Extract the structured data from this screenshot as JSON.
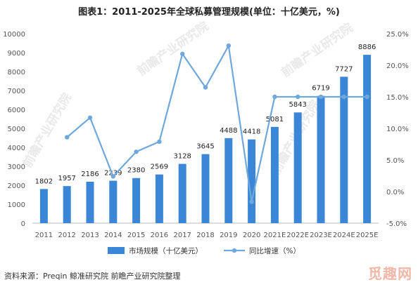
{
  "title": "图表1：2011-2025年全球私募管理规模(单位：十亿美元，%)",
  "source": "资料来源：Preqin 鲸准研究院 前瞻产业研究院整理",
  "watermark": "前瞻产业研究院",
  "corner_mark": "觅趣网",
  "colors": {
    "bar": "#3b86d6",
    "line": "#6fa8dc",
    "axis": "#bbbbbb"
  },
  "chart_data": {
    "type": "bar",
    "categories": [
      "2011",
      "2012",
      "2013",
      "2014",
      "2015",
      "2016",
      "2017",
      "2018",
      "2019",
      "2020",
      "2021E",
      "2022E",
      "2023E",
      "2024E",
      "2025E"
    ],
    "series": [
      {
        "name": "市场规模（十亿美元）",
        "type": "bar",
        "axis": "left",
        "values": [
          1802,
          1957,
          2186,
          2239,
          2380,
          2569,
          3128,
          3645,
          4488,
          4418,
          5081,
          5843,
          6719,
          7727,
          8886
        ],
        "labels": [
          "1802",
          "1957",
          "2186",
          "2239",
          "2380",
          "2569",
          "3128",
          "3645",
          "4488",
          "4418",
          "5081",
          "5843",
          "6719",
          "7727",
          "8886"
        ]
      },
      {
        "name": "同比增速（%）",
        "type": "line",
        "axis": "right",
        "values": [
          null,
          8.6,
          11.7,
          2.4,
          6.3,
          7.9,
          21.8,
          16.5,
          23.1,
          -1.6,
          15.0,
          15.0,
          15.0,
          15.0,
          15.0
        ]
      }
    ],
    "y_left": {
      "min": 0,
      "max": 10000,
      "ticks": [
        "0",
        "1000",
        "2000",
        "3000",
        "4000",
        "5000",
        "6000",
        "7000",
        "8000",
        "9000",
        "10000"
      ]
    },
    "y_right": {
      "min": -5,
      "max": 25,
      "ticks": [
        "-5.0%",
        "0.0%",
        "5.0%",
        "10.0%",
        "15.0%",
        "20.0%",
        "25.0%"
      ]
    },
    "legend_position": "bottom",
    "grid": false
  }
}
